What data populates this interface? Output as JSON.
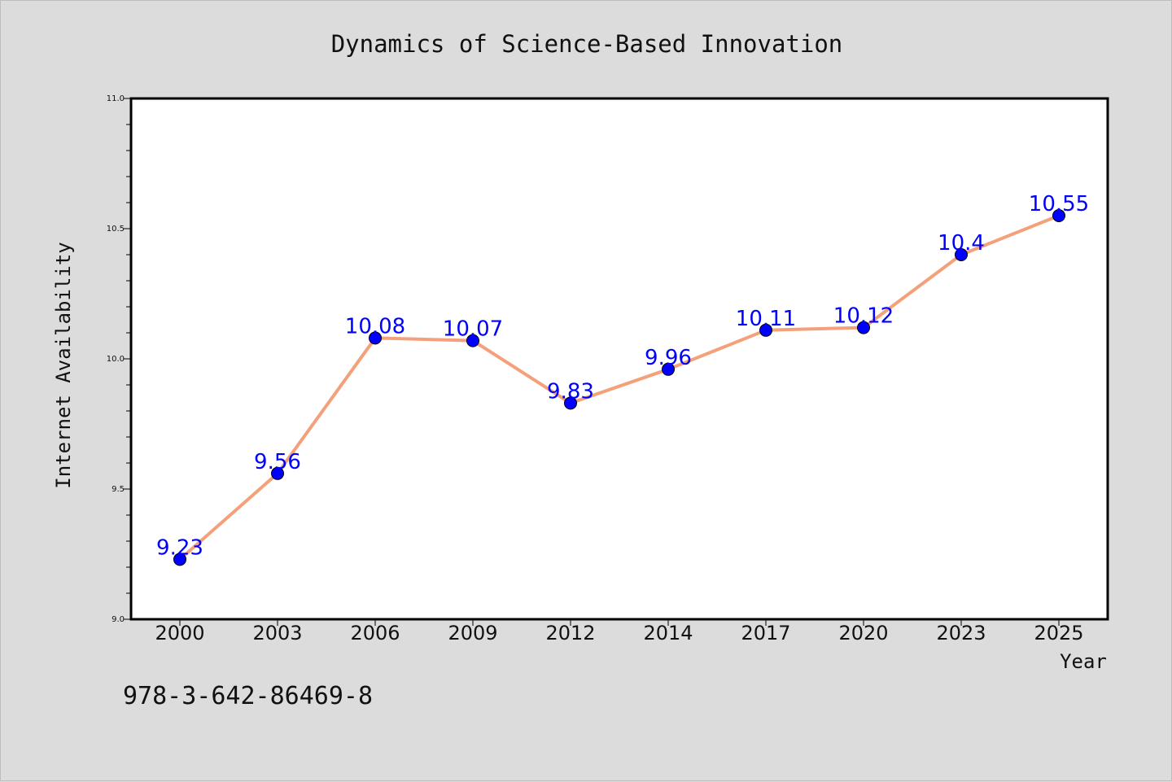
{
  "chart_data": {
    "type": "line",
    "title": "Dynamics of Science-Based Innovation",
    "xlabel": "Year",
    "ylabel": "Internet Availability",
    "categories": [
      "2000",
      "2003",
      "2006",
      "2009",
      "2012",
      "2014",
      "2017",
      "2020",
      "2023",
      "2025"
    ],
    "series": [
      {
        "values": [
          9.23,
          9.56,
          10.08,
          10.07,
          9.83,
          9.96,
          10.11,
          10.12,
          10.4,
          10.55
        ],
        "data_labels": [
          "9.23",
          "9.56",
          "10.08",
          "10.07",
          "9.83",
          "9.96",
          "10.11",
          "10.12",
          "10.4",
          "10.55"
        ],
        "line_color": "#f4a07a",
        "marker_color": "#0000ff"
      }
    ],
    "ylim": [
      9.0,
      11.0
    ],
    "yticks": [
      "9.0",
      "9.5",
      "10.0",
      "10.5",
      "11.0"
    ],
    "grid": false,
    "legend": "none"
  },
  "footer": {
    "isbn": "978-3-642-86469-8"
  }
}
